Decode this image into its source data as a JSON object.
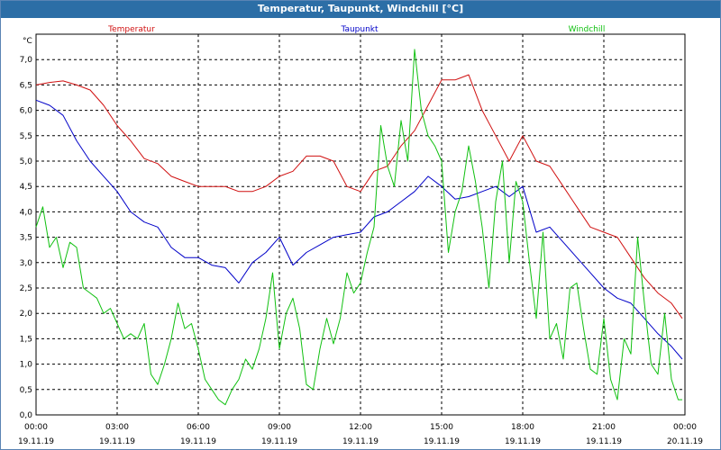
{
  "window": {
    "title": "Temperatur, Taupunkt, Windchill [°C]"
  },
  "colors": {
    "title_bar": "#2c6ea6",
    "temperatur": "#d01010",
    "taupunkt": "#0000c8",
    "windchill": "#10c010",
    "grid": "#000000",
    "text": "#000000"
  },
  "chart_data": {
    "type": "line",
    "title": "Temperatur, Taupunkt, Windchill [°C]",
    "ylabel": "°C",
    "ylim": [
      0.0,
      7.5
    ],
    "yticks": [
      "0,0",
      "0,5",
      "1,0",
      "1,5",
      "2,0",
      "2,5",
      "3,0",
      "3,5",
      "4,0",
      "4,5",
      "5,0",
      "5,5",
      "6,0",
      "6,5",
      "7,0"
    ],
    "xlim": [
      0,
      24
    ],
    "xticks": [
      {
        "time": "00:00",
        "date": "19.11.19"
      },
      {
        "time": "03:00",
        "date": "19.11.19"
      },
      {
        "time": "06:00",
        "date": "19.11.19"
      },
      {
        "time": "09:00",
        "date": "19.11.19"
      },
      {
        "time": "12:00",
        "date": "19.11.19"
      },
      {
        "time": "15:00",
        "date": "19.11.19"
      },
      {
        "time": "18:00",
        "date": "19.11.19"
      },
      {
        "time": "21:00",
        "date": "19.11.19"
      },
      {
        "time": "00:00",
        "date": "20.11.19"
      }
    ],
    "grid": true,
    "series": [
      {
        "name": "Temperatur",
        "color": "#d01010",
        "x": [
          0,
          0.5,
          1,
          1.5,
          2,
          2.5,
          3,
          3.5,
          4,
          4.5,
          5,
          5.5,
          6,
          6.5,
          7,
          7.5,
          8,
          8.5,
          9,
          9.5,
          10,
          10.5,
          11,
          11.5,
          12,
          12.5,
          13,
          13.5,
          14,
          14.5,
          15,
          15.5,
          16,
          16.5,
          17,
          17.5,
          18,
          18.5,
          19,
          19.5,
          20,
          20.5,
          21,
          21.5,
          22,
          22.5,
          23,
          23.5,
          23.9
        ],
        "values": [
          6.5,
          6.55,
          6.58,
          6.5,
          6.4,
          6.1,
          5.7,
          5.4,
          5.05,
          4.95,
          4.7,
          4.6,
          4.5,
          4.5,
          4.5,
          4.4,
          4.4,
          4.5,
          4.7,
          4.8,
          5.1,
          5.1,
          5.0,
          4.5,
          4.4,
          4.8,
          4.9,
          5.3,
          5.6,
          6.1,
          6.6,
          6.6,
          6.7,
          6.0,
          5.5,
          5.0,
          5.5,
          5.0,
          4.9,
          4.5,
          4.1,
          3.7,
          3.6,
          3.5,
          3.1,
          2.7,
          2.4,
          2.2,
          1.9
        ]
      },
      {
        "name": "Taupunkt",
        "color": "#0000c8",
        "x": [
          0,
          0.5,
          1,
          1.5,
          2,
          2.5,
          3,
          3.5,
          4,
          4.5,
          5,
          5.5,
          6,
          6.5,
          7,
          7.5,
          8,
          8.5,
          9,
          9.5,
          10,
          10.5,
          11,
          11.5,
          12,
          12.5,
          13,
          13.5,
          14,
          14.5,
          15,
          15.5,
          16,
          16.5,
          17,
          17.5,
          18,
          18.5,
          19,
          19.5,
          20,
          20.5,
          21,
          21.5,
          22,
          22.5,
          23,
          23.5,
          23.9
        ],
        "values": [
          6.2,
          6.1,
          5.9,
          5.4,
          5.0,
          4.7,
          4.4,
          4.0,
          3.8,
          3.7,
          3.3,
          3.1,
          3.1,
          2.95,
          2.9,
          2.6,
          3.0,
          3.2,
          3.5,
          2.95,
          3.2,
          3.35,
          3.5,
          3.55,
          3.6,
          3.9,
          4.0,
          4.2,
          4.4,
          4.7,
          4.5,
          4.25,
          4.3,
          4.4,
          4.5,
          4.3,
          4.5,
          3.6,
          3.7,
          3.4,
          3.1,
          2.8,
          2.5,
          2.3,
          2.2,
          1.9,
          1.6,
          1.35,
          1.1
        ]
      },
      {
        "name": "Windchill",
        "color": "#10c010",
        "x": [
          0,
          0.25,
          0.5,
          0.75,
          1,
          1.25,
          1.5,
          1.75,
          2,
          2.25,
          2.5,
          2.75,
          3,
          3.25,
          3.5,
          3.75,
          4,
          4.25,
          4.5,
          4.75,
          5,
          5.25,
          5.5,
          5.75,
          6,
          6.25,
          6.5,
          6.75,
          7,
          7.25,
          7.5,
          7.75,
          8,
          8.25,
          8.5,
          8.75,
          9,
          9.25,
          9.5,
          9.75,
          10,
          10.25,
          10.5,
          10.75,
          11,
          11.25,
          11.5,
          11.75,
          12,
          12.25,
          12.5,
          12.75,
          13,
          13.25,
          13.5,
          13.75,
          14,
          14.25,
          14.5,
          14.75,
          15,
          15.25,
          15.5,
          15.75,
          16,
          16.25,
          16.5,
          16.75,
          17,
          17.25,
          17.5,
          17.75,
          18,
          18.25,
          18.5,
          18.75,
          19,
          19.25,
          19.5,
          19.75,
          20,
          20.25,
          20.5,
          20.75,
          21,
          21.25,
          21.5,
          21.75,
          22,
          22.25,
          22.5,
          22.75,
          23,
          23.25,
          23.5,
          23.75,
          23.9
        ],
        "values": [
          3.7,
          4.1,
          3.3,
          3.5,
          2.9,
          3.4,
          3.3,
          2.5,
          2.4,
          2.3,
          2.0,
          2.1,
          1.8,
          1.5,
          1.6,
          1.5,
          1.8,
          0.8,
          0.6,
          1.0,
          1.5,
          2.2,
          1.7,
          1.8,
          1.3,
          0.7,
          0.5,
          0.3,
          0.2,
          0.5,
          0.7,
          1.1,
          0.9,
          1.3,
          1.9,
          2.8,
          1.3,
          2.0,
          2.3,
          1.7,
          0.6,
          0.5,
          1.3,
          1.9,
          1.4,
          1.9,
          2.8,
          2.4,
          2.6,
          3.2,
          3.7,
          5.7,
          4.9,
          4.5,
          5.8,
          5.0,
          7.2,
          6.0,
          5.5,
          5.3,
          5.0,
          3.2,
          4.0,
          4.4,
          5.3,
          4.6,
          3.7,
          2.5,
          4.2,
          5.0,
          3.0,
          4.6,
          4.2,
          3.0,
          1.9,
          3.6,
          1.5,
          1.8,
          1.1,
          2.5,
          2.6,
          1.7,
          0.9,
          0.8,
          1.9,
          0.7,
          0.3,
          1.5,
          1.2,
          3.5,
          2.2,
          1.0,
          0.8,
          2.0,
          0.7,
          0.3,
          0.3
        ]
      }
    ]
  }
}
